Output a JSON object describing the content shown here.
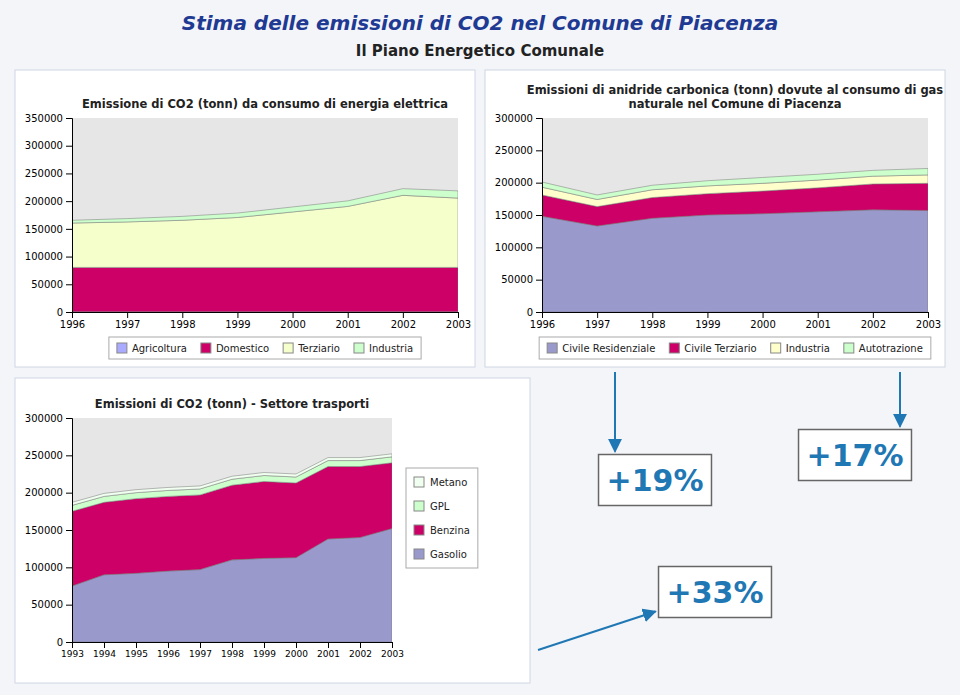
{
  "title": "Stima delle emissioni di CO2 nel Comune di Piacenza",
  "subtitle": "Il Piano Energetico Comunale",
  "annotations": [
    "+19%",
    "+17%",
    "+33%"
  ],
  "chart_data": [
    {
      "type": "area",
      "stacked": true,
      "grid": false,
      "legend": "bottom",
      "title": "Emissione di CO2 (tonn) da consumo di energia elettrica",
      "x": [
        1996,
        1997,
        1998,
        1999,
        2000,
        2001,
        2002,
        2003
      ],
      "xlim": [
        1996,
        2003
      ],
      "xticks": [
        1996,
        1997,
        1998,
        1999,
        2000,
        2001,
        2002,
        2003
      ],
      "ylim": [
        0,
        350000
      ],
      "yticks": [
        0,
        50000,
        100000,
        150000,
        200000,
        250000,
        300000,
        350000
      ],
      "series": [
        {
          "name": "Agricoltura",
          "color": "#aaaaff",
          "values": [
            500,
            500,
            500,
            500,
            500,
            500,
            500,
            500
          ]
        },
        {
          "name": "Domestico",
          "color": "#cc0066",
          "values": [
            80000,
            80000,
            80000,
            80000,
            80000,
            80000,
            80000,
            80000
          ]
        },
        {
          "name": "Terziario",
          "color": "#f5ffcc",
          "values": [
            80000,
            82000,
            85000,
            90000,
            100000,
            110000,
            130000,
            125000
          ]
        },
        {
          "name": "Industria",
          "color": "#ccffcc",
          "values": [
            5000,
            6000,
            7000,
            8000,
            9000,
            10000,
            12000,
            13000
          ]
        }
      ]
    },
    {
      "type": "area",
      "stacked": true,
      "grid": false,
      "legend": "bottom",
      "title": "Emissioni di anidride carbonica (tonn) dovute al consumo di gas\nnaturale nel Comune di Piacenza",
      "x": [
        1996,
        1997,
        1998,
        1999,
        2000,
        2001,
        2002,
        2003
      ],
      "xlim": [
        1996,
        2003
      ],
      "xticks": [
        1996,
        1997,
        1998,
        1999,
        2000,
        2001,
        2002,
        2003
      ],
      "ylim": [
        0,
        300000
      ],
      "yticks": [
        0,
        50000,
        100000,
        150000,
        200000,
        250000,
        300000
      ],
      "series": [
        {
          "name": "Civile Residenziale",
          "color": "#9999cc",
          "values": [
            148000,
            133000,
            145000,
            150000,
            152000,
            155000,
            158000,
            157000
          ]
        },
        {
          "name": "Civile Terziario",
          "color": "#cc0066",
          "values": [
            33000,
            30000,
            32000,
            33000,
            35000,
            37000,
            40000,
            42000
          ]
        },
        {
          "name": "Industria",
          "color": "#ffffcc",
          "values": [
            12000,
            11000,
            12000,
            12000,
            12000,
            12000,
            12000,
            13000
          ]
        },
        {
          "name": "Autotrazione",
          "color": "#ccffcc",
          "values": [
            8000,
            7000,
            7000,
            8000,
            9000,
            9000,
            9000,
            10000
          ]
        }
      ]
    },
    {
      "type": "area",
      "stacked": true,
      "grid": false,
      "legend": "right",
      "title": "Emissioni di CO2 (tonn) - Settore trasporti",
      "x": [
        1993,
        1994,
        1995,
        1996,
        1997,
        1998,
        1999,
        2000,
        2001,
        2002,
        2003
      ],
      "xlim": [
        1993,
        2003
      ],
      "xticks": [
        1993,
        1994,
        1995,
        1996,
        1997,
        1998,
        1999,
        2000,
        2001,
        2002,
        2003
      ],
      "ylim": [
        0,
        300000
      ],
      "yticks": [
        0,
        50000,
        100000,
        150000,
        200000,
        250000,
        300000
      ],
      "series": [
        {
          "name": "Gasolio",
          "color": "#9999cc",
          "values": [
            75000,
            90000,
            92000,
            95000,
            97000,
            110000,
            112000,
            113000,
            138000,
            140000,
            152000
          ]
        },
        {
          "name": "Benzina",
          "color": "#cc0066",
          "values": [
            100000,
            97000,
            100000,
            100000,
            100000,
            100000,
            103000,
            100000,
            97000,
            95000,
            88000
          ]
        },
        {
          "name": "GPL",
          "color": "#ccffcc",
          "values": [
            8000,
            8000,
            8000,
            8000,
            8000,
            8000,
            8000,
            8000,
            8000,
            8000,
            8000
          ]
        },
        {
          "name": "Metano",
          "color": "#f0fff0",
          "values": [
            4000,
            4000,
            4000,
            4000,
            4000,
            4000,
            4000,
            4000,
            4000,
            4000,
            4000
          ]
        }
      ]
    }
  ]
}
